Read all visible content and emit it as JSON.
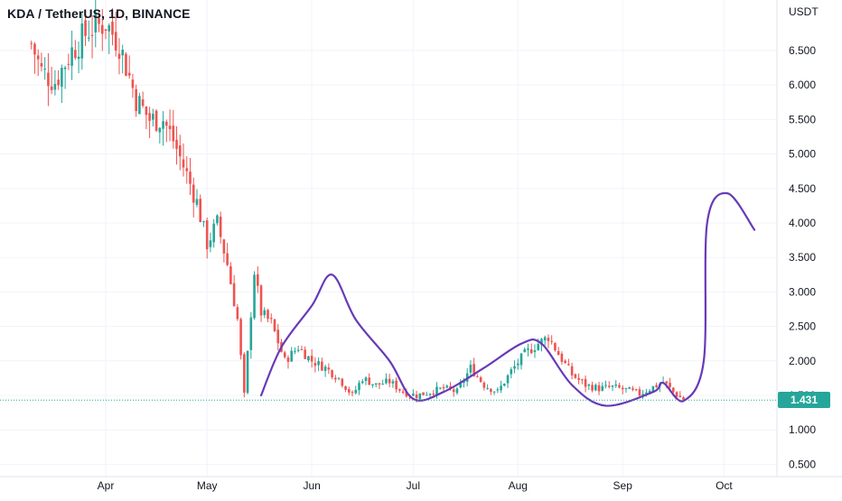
{
  "header": {
    "symbol_title": "KDA / TetherUS, 1D, BINANCE"
  },
  "price_axis": {
    "unit": "USDT",
    "ticks": [
      "6.500",
      "6.000",
      "5.500",
      "5.000",
      "4.500",
      "4.000",
      "3.500",
      "3.000",
      "2.500",
      "2.000",
      "1.500",
      "1.000",
      "0.500"
    ]
  },
  "time_axis": {
    "ticks": [
      "Apr",
      "May",
      "Jun",
      "Jul",
      "Aug",
      "Sep",
      "Oct"
    ]
  },
  "last_price": {
    "label": "1.431",
    "value": 1.431
  },
  "colors": {
    "up": "#26a69a",
    "down": "#ef5350",
    "drawing": "#673ab7",
    "last_price_line": "#26a69a",
    "grid": "#f0f3fa",
    "axis_text": "#131722"
  },
  "chart_data": {
    "type": "candlestick",
    "title": "KDA / TetherUS, 1D, BINANCE",
    "ylabel": "USDT",
    "ylim": [
      0.3,
      6.9
    ],
    "x_ticks": [
      "Apr",
      "May",
      "Jun",
      "Jul",
      "Aug",
      "Sep",
      "Oct"
    ],
    "y_ticks": [
      0.5,
      1.0,
      1.5,
      2.0,
      2.5,
      3.0,
      3.5,
      4.0,
      4.5,
      5.0,
      5.5,
      6.0,
      6.5
    ],
    "grid": true,
    "last_price": 1.431,
    "close_path": [
      {
        "date": "Mar 10",
        "close": 6.6
      },
      {
        "date": "Mar 13",
        "close": 6.2
      },
      {
        "date": "Mar 17",
        "close": 6.05
      },
      {
        "date": "Mar 22",
        "close": 6.5
      },
      {
        "date": "Mar 27",
        "close": 6.8
      },
      {
        "date": "Apr 1",
        "close": 6.9
      },
      {
        "date": "Apr 5",
        "close": 6.6
      },
      {
        "date": "Apr 10",
        "close": 5.8
      },
      {
        "date": "Apr 14",
        "close": 5.5
      },
      {
        "date": "Apr 18",
        "close": 5.5
      },
      {
        "date": "Apr 21",
        "close": 5.2
      },
      {
        "date": "Apr 25",
        "close": 4.7
      },
      {
        "date": "Apr 28",
        "close": 4.3
      },
      {
        "date": "May 1",
        "close": 3.7
      },
      {
        "date": "May 4",
        "close": 4.0
      },
      {
        "date": "May 7",
        "close": 3.4
      },
      {
        "date": "May 10",
        "close": 2.6
      },
      {
        "date": "May 12",
        "close": 1.5
      },
      {
        "date": "May 15",
        "close": 3.3
      },
      {
        "date": "May 17",
        "close": 2.7
      },
      {
        "date": "May 20",
        "close": 2.55
      },
      {
        "date": "May 24",
        "close": 2.0
      },
      {
        "date": "May 28",
        "close": 2.2
      },
      {
        "date": "Jun 1",
        "close": 2.0
      },
      {
        "date": "Jun 5",
        "close": 1.9
      },
      {
        "date": "Jun 9",
        "close": 1.75
      },
      {
        "date": "Jun 13",
        "close": 1.5
      },
      {
        "date": "Jun 16",
        "close": 1.75
      },
      {
        "date": "Jun 20",
        "close": 1.65
      },
      {
        "date": "Jun 24",
        "close": 1.7
      },
      {
        "date": "Jun 28",
        "close": 1.55
      },
      {
        "date": "Jul 2",
        "close": 1.5
      },
      {
        "date": "Jul 6",
        "close": 1.55
      },
      {
        "date": "Jul 10",
        "close": 1.6
      },
      {
        "date": "Jul 14",
        "close": 1.55
      },
      {
        "date": "Jul 18",
        "close": 1.9
      },
      {
        "date": "Jul 22",
        "close": 1.65
      },
      {
        "date": "Jul 26",
        "close": 1.55
      },
      {
        "date": "Jul 30",
        "close": 1.85
      },
      {
        "date": "Aug 3",
        "close": 2.1
      },
      {
        "date": "Aug 7",
        "close": 2.25
      },
      {
        "date": "Aug 10",
        "close": 2.35
      },
      {
        "date": "Aug 13",
        "close": 2.1
      },
      {
        "date": "Aug 17",
        "close": 1.8
      },
      {
        "date": "Aug 21",
        "close": 1.65
      },
      {
        "date": "Aug 25",
        "close": 1.6
      },
      {
        "date": "Aug 29",
        "close": 1.62
      },
      {
        "date": "Sep 2",
        "close": 1.58
      },
      {
        "date": "Sep 6",
        "close": 1.52
      },
      {
        "date": "Sep 10",
        "close": 1.62
      },
      {
        "date": "Sep 13",
        "close": 1.7
      },
      {
        "date": "Sep 16",
        "close": 1.55
      },
      {
        "date": "Sep 19",
        "close": 1.431
      }
    ],
    "drawing_path": [
      {
        "date": "May 17",
        "price": 1.5
      },
      {
        "date": "May 23",
        "price": 2.2
      },
      {
        "date": "Jun 1",
        "price": 2.8
      },
      {
        "date": "Jun 7",
        "price": 3.25
      },
      {
        "date": "Jun 14",
        "price": 2.6
      },
      {
        "date": "Jun 24",
        "price": 2.0
      },
      {
        "date": "Jul 1",
        "price": 1.45
      },
      {
        "date": "Jul 10",
        "price": 1.55
      },
      {
        "date": "Jul 22",
        "price": 1.9
      },
      {
        "date": "Aug 2",
        "price": 2.25
      },
      {
        "date": "Aug 8",
        "price": 2.25
      },
      {
        "date": "Aug 17",
        "price": 1.65
      },
      {
        "date": "Aug 27",
        "price": 1.35
      },
      {
        "date": "Sep 10",
        "price": 1.55
      },
      {
        "date": "Sep 13",
        "price": 1.68
      },
      {
        "date": "Sep 19",
        "price": 1.42
      },
      {
        "date": "Sep 25",
        "price": 2.0
      },
      {
        "date": "Sep 26",
        "price": 4.0
      },
      {
        "date": "Oct 2",
        "price": 4.43
      },
      {
        "date": "Oct 10",
        "price": 3.9
      }
    ]
  }
}
